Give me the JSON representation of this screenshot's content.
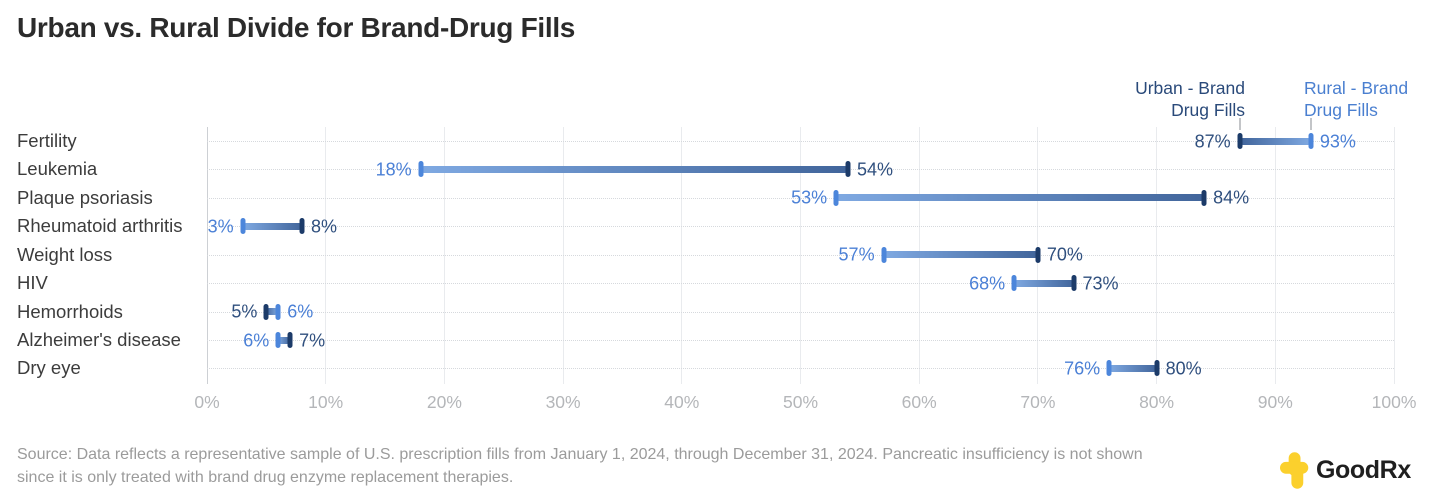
{
  "title": "Urban vs. Rural Divide for Brand-Drug Fills",
  "legend": {
    "urban": {
      "lines": [
        "Urban - Brand",
        "Drug Fills"
      ]
    },
    "rural": {
      "lines": [
        "Rural - Brand",
        "Drug Fills"
      ]
    }
  },
  "chart_data": {
    "type": "bar",
    "variant": "dumbbell-range",
    "orientation": "horizontal",
    "title": "Urban vs. Rural Divide for Brand-Drug Fills",
    "categories": [
      "Fertility",
      "Leukemia",
      "Plaque psoriasis",
      "Rheumatoid arthritis",
      "Weight loss",
      "HIV",
      "Hemorrhoids",
      "Alzheimer's disease",
      "Dry eye"
    ],
    "series": [
      {
        "name": "Urban - Brand Drug Fills",
        "values": [
          87,
          54,
          84,
          8,
          70,
          73,
          5,
          7,
          80
        ],
        "cap_color": "#1c3b69",
        "label_color": "#2f4f7e",
        "bar_end_color": "#41659b"
      },
      {
        "name": "Rural - Brand Drug Fills",
        "values": [
          93,
          18,
          53,
          3,
          57,
          68,
          6,
          6,
          76
        ],
        "cap_color": "#4c86db",
        "label_color": "#4b80d6",
        "bar_end_color": "#7fa9e2"
      }
    ],
    "value_suffix": "%",
    "x_ticks": [
      "0%",
      "10%",
      "20%",
      "30%",
      "40%",
      "50%",
      "60%",
      "70%",
      "80%",
      "90%",
      "100%"
    ],
    "xlim": [
      0,
      100
    ],
    "grid": "vertical solid gridlines at 10% steps, dotted horizontal row guides",
    "legend_position": "top-right above first row endpoints"
  },
  "source": {
    "lines": [
      "Source: Data reflects a representative sample of U.S. prescription fills from January 1, 2024, through December 31, 2024. Pancreatic insufficiency is not shown",
      "since it is only treated with brand drug enzyme replacement therapies."
    ]
  },
  "logo": {
    "text": "GoodRx",
    "icon": "goodrx-cross-icon",
    "icon_color": "#FBD02D",
    "text_color": "#1f1f1f"
  }
}
